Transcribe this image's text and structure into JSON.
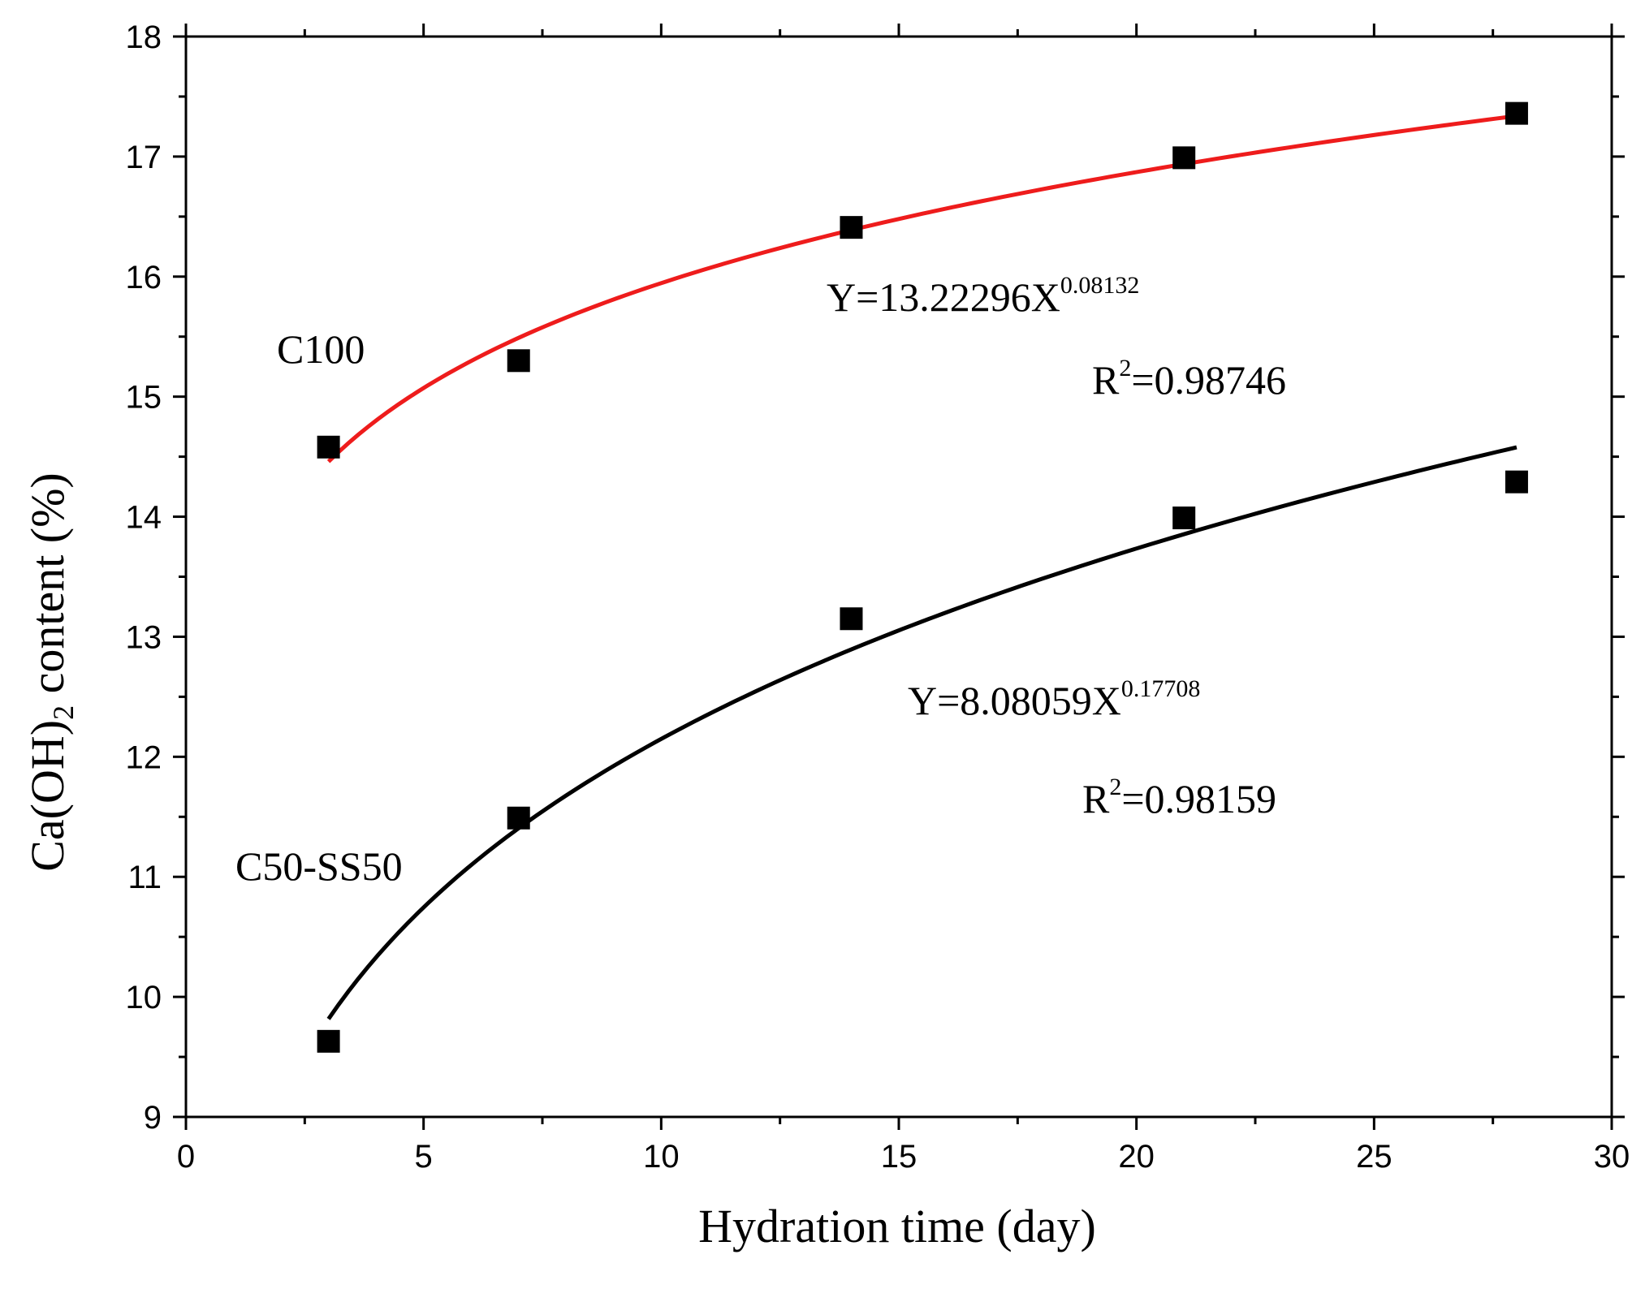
{
  "chart_data": {
    "type": "scatter",
    "title": "",
    "xlabel": "Hydration time (day)",
    "ylabel_parts": [
      "Ca(OH)",
      "2",
      " content (%)"
    ],
    "xlim": [
      0,
      30
    ],
    "ylim": [
      9,
      18
    ],
    "x_ticks": [
      0,
      5,
      10,
      15,
      20,
      25,
      30
    ],
    "y_ticks": [
      9,
      10,
      11,
      12,
      13,
      14,
      15,
      16,
      17,
      18
    ],
    "grid": false,
    "legend": "none",
    "series": [
      {
        "name": "C100",
        "marker": "square",
        "marker_color": "#000000",
        "fit_color": "#ee1c1c",
        "x": [
          3,
          7,
          14,
          21,
          28
        ],
        "y": [
          14.58,
          15.3,
          16.41,
          16.99,
          17.36
        ],
        "fit": {
          "type": "power",
          "a": 13.22296,
          "b": 0.08132,
          "x_range": [
            3,
            28
          ]
        },
        "equation": {
          "base": "Y=13.22296X",
          "exponent": "0.08132"
        },
        "r2": {
          "prefix": "R",
          "sup": "2",
          "value": "=0.98746"
        }
      },
      {
        "name": "C50-SS50",
        "marker": "square",
        "marker_color": "#000000",
        "fit_color": "#000000",
        "x": [
          3,
          7,
          14,
          21,
          28
        ],
        "y": [
          9.63,
          11.49,
          13.15,
          13.99,
          14.29
        ],
        "fit": {
          "type": "power",
          "a": 8.08059,
          "b": 0.17708,
          "x_range": [
            3,
            28
          ]
        },
        "equation": {
          "base": "Y=8.08059X",
          "exponent": "0.17708"
        },
        "r2": {
          "prefix": "R",
          "sup": "2",
          "value": "=0.98159"
        }
      }
    ]
  }
}
